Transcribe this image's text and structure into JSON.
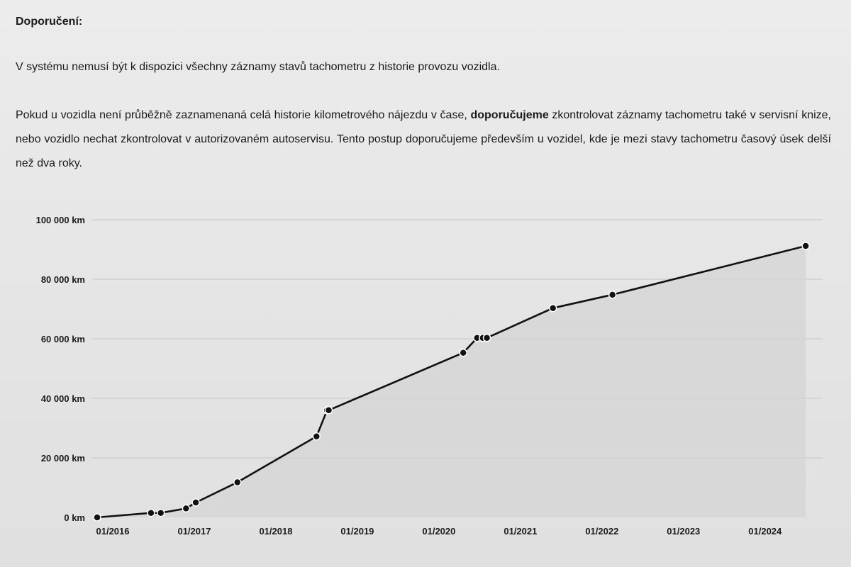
{
  "text": {
    "heading": "Doporučení:",
    "para1": "V systému nemusí být k dispozici všechny záznamy stavů tachometru z historie provozu vozidla.",
    "para2_before": "Pokud u vozidla není průběžně zaznamenaná celá historie kilometrového nájezdu v čase, ",
    "para2_bold": "doporučujeme",
    "para2_after": " zkontrolovat záznamy tachometru také v servisní knize, nebo vozidlo nechat zkontrolovat v autorizovaném autoservisu. Tento postup doporučujeme především u vozidel, kde je mezi stavy tachometru časový úsek delší než dva roky."
  },
  "colors": {
    "line": "#111111",
    "area": "#d4d4d4",
    "grid": "#c4c4c4",
    "point": "#111111",
    "point_outline": "#ffffff"
  },
  "chart_data": {
    "type": "area",
    "title": "",
    "xlabel": "",
    "ylabel": "",
    "y_ticks": [
      "0 km",
      "20 000 km",
      "40 000 km",
      "60 000 km",
      "80 000 km",
      "100 000 km"
    ],
    "y_tick_values": [
      0,
      20000,
      40000,
      60000,
      80000,
      100000
    ],
    "ylim": [
      0,
      100000
    ],
    "x_ticks": [
      "01/2016",
      "01/2017",
      "01/2018",
      "01/2019",
      "01/2020",
      "01/2021",
      "01/2022",
      "01/2023",
      "01/2024"
    ],
    "x_tick_values": [
      2016.0,
      2017.0,
      2018.0,
      2019.0,
      2020.0,
      2021.0,
      2022.0,
      2023.0,
      2024.0
    ],
    "xlim": [
      2016.0,
      2024.75
    ],
    "grid": true,
    "legend": "none",
    "series": [
      {
        "points": [
          {
            "x": 2016.0,
            "y": 0
          },
          {
            "x": 2016.66,
            "y": 1500
          },
          {
            "x": 2016.78,
            "y": 1500
          },
          {
            "x": 2017.09,
            "y": 3000
          },
          {
            "x": 2017.21,
            "y": 5000
          },
          {
            "x": 2017.72,
            "y": 11800
          },
          {
            "x": 2018.69,
            "y": 27200
          },
          {
            "x": 2018.82,
            "y": 36000
          },
          {
            "x": 2018.84,
            "y": 36000
          },
          {
            "x": 2020.49,
            "y": 55300
          },
          {
            "x": 2020.66,
            "y": 60300
          },
          {
            "x": 2020.73,
            "y": 60300
          },
          {
            "x": 2020.78,
            "y": 60300
          },
          {
            "x": 2021.59,
            "y": 70300
          },
          {
            "x": 2022.32,
            "y": 74800
          },
          {
            "x": 2024.69,
            "y": 91200
          }
        ]
      }
    ]
  }
}
